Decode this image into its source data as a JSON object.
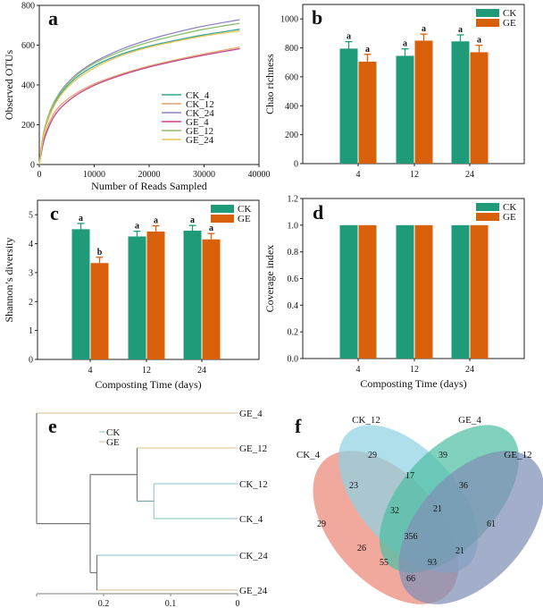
{
  "colors": {
    "CK": "#1f9b79",
    "GE": "#d9600a",
    "axis": "#222222",
    "dendro_root": "#777777",
    "dendro_CK": "#9fcfd0",
    "dendro_GE": "#e8c9a0"
  },
  "chart_data": [
    {
      "panel": "a",
      "type": "line",
      "title": "",
      "xlabel": "Number of Reads Sampled",
      "ylabel": "Observed OTUs",
      "xlim": [
        0,
        40000
      ],
      "ylim": [
        0,
        800
      ],
      "xticks": [
        0,
        10000,
        20000,
        30000,
        40000
      ],
      "yticks": [
        0,
        200,
        400,
        600,
        800
      ],
      "legend_position": "center-right",
      "series": [
        {
          "name": "CK_4",
          "color": "#3aa393",
          "x": [
            0,
            1000,
            3000,
            6000,
            10000,
            15000,
            20000,
            25000,
            30000,
            36500
          ],
          "values": [
            0,
            180,
            320,
            420,
            495,
            555,
            595,
            625,
            652,
            680
          ]
        },
        {
          "name": "CK_12",
          "color": "#e3a372",
          "x": [
            0,
            1000,
            3000,
            6000,
            10000,
            15000,
            20000,
            25000,
            30000,
            36500
          ],
          "values": [
            0,
            150,
            270,
            345,
            405,
            455,
            495,
            527,
            556,
            590
          ]
        },
        {
          "name": "CK_24",
          "color": "#8e84c8",
          "x": [
            0,
            1000,
            3000,
            6000,
            10000,
            15000,
            20000,
            25000,
            30000,
            36500
          ],
          "values": [
            0,
            185,
            330,
            435,
            515,
            580,
            628,
            665,
            696,
            728
          ]
        },
        {
          "name": "GE_4",
          "color": "#c2458c",
          "x": [
            0,
            1000,
            3000,
            6000,
            10000,
            15000,
            20000,
            25000,
            30000,
            36500
          ],
          "values": [
            0,
            135,
            255,
            335,
            398,
            450,
            490,
            522,
            550,
            582
          ]
        },
        {
          "name": "GE_12",
          "color": "#8dbf6d",
          "x": [
            0,
            1000,
            3000,
            6000,
            10000,
            15000,
            20000,
            25000,
            30000,
            36500
          ],
          "values": [
            0,
            185,
            328,
            430,
            508,
            570,
            615,
            650,
            680,
            710
          ]
        },
        {
          "name": "GE_24",
          "color": "#e6c65a",
          "x": [
            0,
            1000,
            3000,
            6000,
            10000,
            15000,
            20000,
            25000,
            30000,
            36500
          ],
          "values": [
            0,
            170,
            310,
            410,
            485,
            548,
            590,
            620,
            646,
            672
          ]
        }
      ]
    },
    {
      "panel": "b",
      "type": "bar",
      "xlabel": "",
      "ylabel": "Chao richness",
      "categories": [
        "4",
        "12",
        "24"
      ],
      "ylim": [
        0,
        1100
      ],
      "yticks": [
        0,
        200,
        400,
        600,
        800,
        1000
      ],
      "legend_position": "top-right",
      "series": [
        {
          "name": "CK",
          "values": [
            795,
            745,
            845
          ],
          "errors": [
            48,
            48,
            45
          ],
          "sig": [
            "a",
            "a",
            "a"
          ]
        },
        {
          "name": "GE",
          "values": [
            705,
            850,
            770
          ],
          "errors": [
            50,
            45,
            48
          ],
          "sig": [
            "a",
            "a",
            "a"
          ]
        }
      ]
    },
    {
      "panel": "c",
      "type": "bar",
      "xlabel": "Composting Time (days)",
      "ylabel": "Shannon’s diversity",
      "categories": [
        "4",
        "12",
        "24"
      ],
      "ylim": [
        0,
        5.5
      ],
      "yticks": [
        0,
        1,
        2,
        3,
        4,
        5
      ],
      "legend_position": "top-right",
      "series": [
        {
          "name": "CK",
          "values": [
            4.5,
            4.25,
            4.45
          ],
          "errors": [
            0.2,
            0.18,
            0.18
          ],
          "sig": [
            "a",
            "a",
            "a"
          ]
        },
        {
          "name": "GE",
          "values": [
            3.33,
            4.42,
            4.15
          ],
          "errors": [
            0.2,
            0.2,
            0.2
          ],
          "sig": [
            "b",
            "a",
            "a"
          ]
        }
      ]
    },
    {
      "panel": "d",
      "type": "bar",
      "xlabel": "Composting Time (days)",
      "ylabel": "Coverage index",
      "categories": [
        "4",
        "12",
        "24"
      ],
      "ylim": [
        0,
        1.2
      ],
      "yticks": [
        "0.0",
        "0.2",
        "0.4",
        "0.6",
        "0.8",
        "1.0",
        "1.2"
      ],
      "legend_position": "top-right",
      "series": [
        {
          "name": "CK",
          "values": [
            1.0,
            1.0,
            1.0
          ]
        },
        {
          "name": "GE",
          "values": [
            1.0,
            1.0,
            1.0
          ]
        }
      ]
    },
    {
      "panel": "e",
      "type": "dendrogram",
      "xticks": [
        "0.2",
        "0.1",
        "0"
      ],
      "xlim": [
        0.3,
        0
      ],
      "legend": [
        "CK",
        "GE"
      ],
      "legend_position": "top-left",
      "leaves": [
        {
          "name": "GE_4",
          "group": "GE"
        },
        {
          "name": "GE_12",
          "group": "GE"
        },
        {
          "name": "CK_12",
          "group": "CK"
        },
        {
          "name": "CK_4",
          "group": "CK"
        },
        {
          "name": "CK_24",
          "group": "CK"
        },
        {
          "name": "GE_24",
          "group": "GE"
        }
      ],
      "merge_heights": {
        "CK_12+CK_4": 0.125,
        "GE_12+(CK_12,CK_4)": 0.15,
        "CK_24+GE_24": 0.21,
        "clusterA+clusterB": 0.22,
        "root": 0.3
      }
    },
    {
      "panel": "f",
      "type": "venn",
      "sets": [
        "CK_4",
        "CK_12",
        "GE_4",
        "GE_12"
      ],
      "set_colors": [
        "#ec8677",
        "#8fd3e3",
        "#4fbfa3",
        "#7f8fb5"
      ],
      "regions": [
        {
          "sets": [
            "CK_12"
          ],
          "value": 29
        },
        {
          "sets": [
            "GE_4"
          ],
          "value": 39
        },
        {
          "sets": [
            "CK_12",
            "GE_4"
          ],
          "value": 17
        },
        {
          "sets": [
            "CK_4",
            "CK_12"
          ],
          "value": 23
        },
        {
          "sets": [
            "GE_4",
            "GE_12"
          ],
          "value": 36
        },
        {
          "sets": [
            "CK_4",
            "CK_12",
            "GE_4"
          ],
          "value": 32
        },
        {
          "sets": [
            "CK_12",
            "GE_4",
            "GE_12"
          ],
          "value": 21
        },
        {
          "sets": [
            "CK_4"
          ],
          "value": 29
        },
        {
          "sets": [
            "GE_12"
          ],
          "value": 61
        },
        {
          "sets": [
            "CK_4",
            "CK_12",
            "GE_4",
            "GE_12"
          ],
          "value": 356
        },
        {
          "sets": [
            "CK_4",
            "GE_4"
          ],
          "value": 26
        },
        {
          "sets": [
            "CK_12",
            "GE_12"
          ],
          "value": 21
        },
        {
          "sets": [
            "CK_4",
            "GE_4",
            "GE_12"
          ],
          "value": 55
        },
        {
          "sets": [
            "CK_4",
            "CK_12",
            "GE_12"
          ],
          "value": 93
        },
        {
          "sets": [
            "CK_4",
            "GE_12"
          ],
          "value": 66
        }
      ]
    }
  ]
}
